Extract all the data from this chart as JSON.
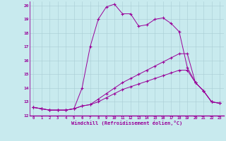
{
  "xlabel": "Windchill (Refroidissement éolien,°C)",
  "bg_color": "#c8eaee",
  "grid_color": "#a8cdd4",
  "line_color": "#990099",
  "xlim": [
    -0.5,
    23.5
  ],
  "ylim": [
    12,
    20.3
  ],
  "xticks": [
    0,
    1,
    2,
    3,
    4,
    5,
    6,
    7,
    8,
    9,
    10,
    11,
    12,
    13,
    14,
    15,
    16,
    17,
    18,
    19,
    20,
    21,
    22,
    23
  ],
  "yticks": [
    12,
    13,
    14,
    15,
    16,
    17,
    18,
    19,
    20
  ],
  "series": [
    [
      12.6,
      12.5,
      12.4,
      12.4,
      12.4,
      12.5,
      14.0,
      17.0,
      19.0,
      19.9,
      20.1,
      19.4,
      19.4,
      18.5,
      18.6,
      19.0,
      19.1,
      18.7,
      18.1,
      15.5,
      14.4,
      13.8,
      13.0,
      12.9
    ],
    [
      12.6,
      12.5,
      12.4,
      12.4,
      12.4,
      12.5,
      12.7,
      12.8,
      13.2,
      13.6,
      14.0,
      14.4,
      14.7,
      15.0,
      15.3,
      15.6,
      15.9,
      16.2,
      16.5,
      16.5,
      14.4,
      13.8,
      13.0,
      12.9
    ],
    [
      12.6,
      12.5,
      12.4,
      12.4,
      12.4,
      12.5,
      12.7,
      12.8,
      13.0,
      13.3,
      13.6,
      13.9,
      14.1,
      14.3,
      14.5,
      14.7,
      14.9,
      15.1,
      15.3,
      15.3,
      14.4,
      13.8,
      13.0,
      12.9
    ]
  ]
}
